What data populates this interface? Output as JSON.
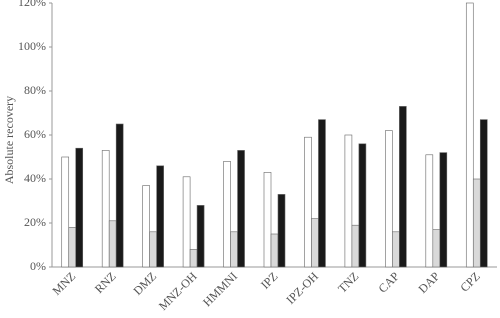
{
  "chart_data": {
    "type": "bar",
    "y_label": "Absolute recovery",
    "categories": [
      "MNZ",
      "RNZ",
      "DMZ",
      "MNZ-OH",
      "HMMNI",
      "IPZ",
      "IPZ-OH",
      "TNZ",
      "CAP",
      "DAP",
      "CPZ"
    ],
    "series": [
      {
        "color": "#ffffff",
        "values": [
          50,
          53,
          37,
          41,
          48,
          43,
          59,
          60,
          62,
          51,
          120
        ]
      },
      {
        "color": "#d9d9d9",
        "values": [
          18,
          21,
          16,
          8,
          16,
          15,
          22,
          19,
          16,
          17,
          40
        ]
      },
      {
        "color": "#1a1a1a",
        "values": [
          54,
          65,
          46,
          28,
          53,
          33,
          67,
          56,
          73,
          52,
          67
        ]
      }
    ],
    "ylim": [
      0,
      120
    ],
    "yticks": [
      {
        "value": 0,
        "label": "0%"
      },
      {
        "value": 20,
        "label": "20%"
      },
      {
        "value": 40,
        "label": "40%"
      },
      {
        "value": 60,
        "label": "60%"
      },
      {
        "value": 80,
        "label": "80%"
      },
      {
        "value": 100,
        "label": "100%"
      },
      {
        "value": 120,
        "label": "120%"
      }
    ]
  }
}
